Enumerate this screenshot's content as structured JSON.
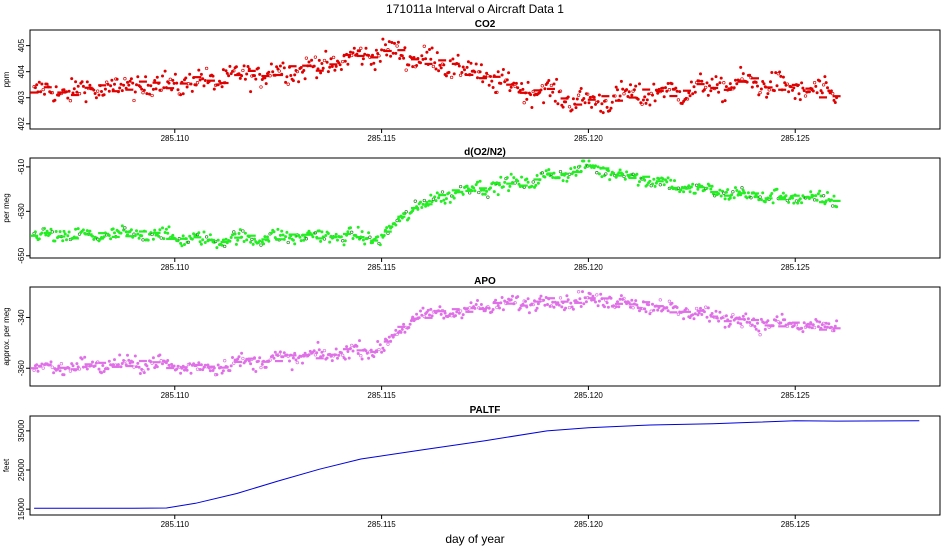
{
  "title": "171011a   Interval o Aircraft Data 1",
  "xlabel": "day of year",
  "chart_data": [
    {
      "type": "scatter",
      "title": "CO2",
      "ylabel": "ppm",
      "color": "#e00000",
      "xlim": [
        285.1065,
        285.1285
      ],
      "ylim": [
        401.8,
        405.6
      ],
      "xticks": [
        "285.110",
        "285.115",
        "285.120",
        "285.125"
      ],
      "xtick_values": [
        285.11,
        285.115,
        285.12,
        285.125
      ],
      "yticks": [
        "402",
        "403",
        "404",
        "405"
      ],
      "ytick_values": [
        402,
        403,
        404,
        405
      ],
      "x_range": [
        285.1066,
        285.126
      ],
      "trend": [
        [
          285.1066,
          403.2
        ],
        [
          285.108,
          403.3
        ],
        [
          285.1095,
          403.5
        ],
        [
          285.1105,
          403.6
        ],
        [
          285.112,
          403.9
        ],
        [
          285.1135,
          404.2
        ],
        [
          285.115,
          404.8
        ],
        [
          285.116,
          404.5
        ],
        [
          285.117,
          404.1
        ],
        [
          285.118,
          403.5
        ],
        [
          285.119,
          403.2
        ],
        [
          285.12,
          402.8
        ],
        [
          285.121,
          403.1
        ],
        [
          285.1225,
          403.3
        ],
        [
          285.124,
          403.6
        ],
        [
          285.126,
          403.1
        ]
      ],
      "noise": 0.45
    },
    {
      "type": "scatter",
      "title": "d(O2/N2)",
      "ylabel": "per meg",
      "color": "#22ee22",
      "xlim": [
        285.1065,
        285.1285
      ],
      "ylim": [
        -651,
        -606
      ],
      "xticks": [
        "285.110",
        "285.115",
        "285.120",
        "285.125"
      ],
      "xtick_values": [
        285.11,
        285.115,
        285.12,
        285.125
      ],
      "yticks": [
        "-610",
        "-630",
        "-650"
      ],
      "ytick_values": [
        -610,
        -630,
        -650
      ],
      "x_range": [
        285.1066,
        285.126
      ],
      "trend": [
        [
          285.1066,
          -641
        ],
        [
          285.108,
          -641
        ],
        [
          285.1095,
          -640
        ],
        [
          285.1105,
          -643
        ],
        [
          285.112,
          -642
        ],
        [
          285.1135,
          -641
        ],
        [
          285.115,
          -642
        ],
        [
          285.1158,
          -628
        ],
        [
          285.117,
          -620
        ],
        [
          285.1185,
          -617
        ],
        [
          285.12,
          -610
        ],
        [
          285.121,
          -614
        ],
        [
          285.1225,
          -620
        ],
        [
          285.124,
          -623
        ],
        [
          285.126,
          -625
        ]
      ],
      "noise": 3.2
    },
    {
      "type": "scatter",
      "title": "APO",
      "ylabel": "approx. per meg",
      "color": "#e070e8",
      "xlim": [
        285.1065,
        285.1285
      ],
      "ylim": [
        -367,
        -328
      ],
      "xticks": [
        "285.110",
        "285.115",
        "285.120",
        "285.125"
      ],
      "xtick_values": [
        285.11,
        285.115,
        285.12,
        285.125
      ],
      "yticks": [
        "-340",
        "-360"
      ],
      "ytick_values": [
        -340,
        -360
      ],
      "x_range": [
        285.1066,
        285.126
      ],
      "trend": [
        [
          285.1066,
          -360
        ],
        [
          285.108,
          -359
        ],
        [
          285.1095,
          -358
        ],
        [
          285.1105,
          -360
        ],
        [
          285.112,
          -357
        ],
        [
          285.1135,
          -355
        ],
        [
          285.115,
          -352
        ],
        [
          285.1158,
          -340
        ],
        [
          285.117,
          -337
        ],
        [
          285.1185,
          -334
        ],
        [
          285.12,
          -333
        ],
        [
          285.121,
          -334
        ],
        [
          285.1225,
          -338
        ],
        [
          285.124,
          -342
        ],
        [
          285.126,
          -344
        ]
      ],
      "noise": 3.0
    },
    {
      "type": "line",
      "title": "PALTF",
      "ylabel": "feet",
      "color": "#0000dd",
      "xlim": [
        285.1065,
        285.1285
      ],
      "ylim": [
        13500,
        38800
      ],
      "xticks": [
        "285.110",
        "285.115",
        "285.120",
        "285.125"
      ],
      "xtick_values": [
        285.11,
        285.115,
        285.12,
        285.125
      ],
      "yticks": [
        "15000",
        "25000",
        "35000"
      ],
      "ytick_values": [
        15000,
        25000,
        35000
      ],
      "x": [
        285.1066,
        285.109,
        285.1098,
        285.1105,
        285.1115,
        285.1125,
        285.1135,
        285.1145,
        285.116,
        285.1175,
        285.119,
        285.12,
        285.1215,
        285.123,
        285.124,
        285.125,
        285.126,
        285.128
      ],
      "y": [
        15200,
        15200,
        15300,
        16500,
        19000,
        22200,
        25200,
        27800,
        30200,
        32500,
        35000,
        35800,
        36500,
        36800,
        37200,
        37600,
        37500,
        37600
      ]
    }
  ]
}
